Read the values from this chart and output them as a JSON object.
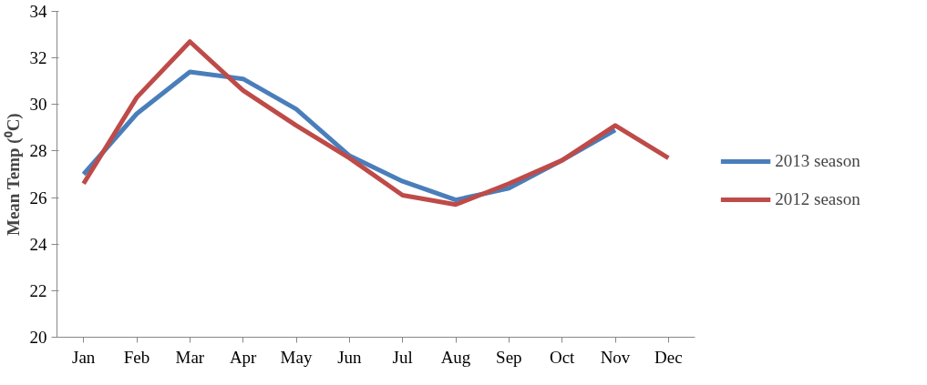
{
  "chart_data": {
    "type": "line",
    "ylabel": "Mean Temp (⁰C)",
    "categories": [
      "Jan",
      "Feb",
      "Mar",
      "Apr",
      "May",
      "Jun",
      "Jul",
      "Aug",
      "Sep",
      "Oct",
      "Nov",
      "Dec"
    ],
    "series": [
      {
        "name": "2013 season",
        "color": "#4a7ebb",
        "values": [
          27.0,
          29.6,
          31.4,
          31.1,
          29.8,
          27.8,
          26.7,
          25.9,
          26.4,
          27.6,
          28.9,
          null
        ]
      },
      {
        "name": "2012 season",
        "color": "#be4b48",
        "values": [
          26.6,
          30.3,
          32.7,
          30.6,
          29.1,
          27.7,
          26.1,
          25.7,
          26.6,
          27.6,
          29.1,
          27.7
        ]
      }
    ],
    "ylim": [
      20,
      34
    ],
    "yticks": [
      20,
      22,
      24,
      26,
      28,
      30,
      32,
      34
    ],
    "grid": false,
    "legend": "right",
    "marker": "none",
    "line_style": "solid"
  }
}
